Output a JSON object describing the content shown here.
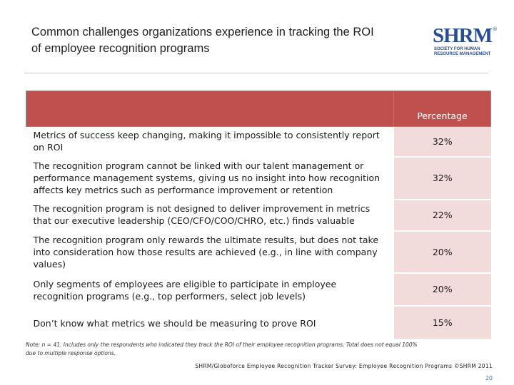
{
  "title": {
    "line1": "Common challenges organizations experience in tracking the ROI",
    "line2": "of employee recognition programs"
  },
  "logo": {
    "word": "SHRM",
    "registered": "®",
    "sub_line1": "SOCIETY FOR HUMAN",
    "sub_line2": "RESOURCE MANAGEMENT"
  },
  "table": {
    "header_blank": "",
    "header_value": "Percentage",
    "rows": [
      {
        "label": "Metrics of success keep changing, making it impossible to consistently report on ROI",
        "value": "32%"
      },
      {
        "label": "The recognition program cannot be linked with our talent management or performance management systems, giving us no insight into how recognition affects key metrics such as performance improvement or retention",
        "value": "32%"
      },
      {
        "label": "The recognition program is not designed to deliver improvement in metrics that our executive leadership (CEO/CFO/COO/CHRO, etc.) finds valuable",
        "value": "22%"
      },
      {
        "label": "The recognition program only rewards the ultimate results, but does not take into consideration how those results are achieved (e.g., in line with company values)",
        "value": "20%"
      },
      {
        "label": "Only segments of employees are eligible to participate in employee recognition programs (e.g., top performers, select job levels)",
        "value": "20%"
      },
      {
        "label": "Don’t know what metrics we should be measuring to prove ROI",
        "value": "15%"
      }
    ]
  },
  "note": {
    "line1": "Note: n = 41. Includes only the respondents who indicated they track the ROI of their employee recognition programs. Total does not equal 100%",
    "line2": "due to multiple response options."
  },
  "source": "SHRM/Globoforce Employee Recognition Tracker Survey: Employee Recognition Programs ©SHRM 2011",
  "page_number": "20"
}
